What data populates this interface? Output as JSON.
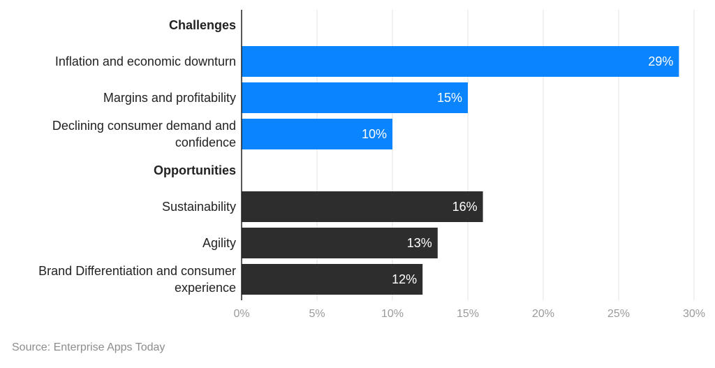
{
  "chart_data": {
    "type": "bar",
    "orientation": "horizontal",
    "unit": "%",
    "xlim": [
      0,
      30
    ],
    "xticks": [
      0,
      5,
      10,
      15,
      20,
      25,
      30
    ],
    "grid": true,
    "colors": {
      "challenges": "#0a84ff",
      "opportunities": "#2d2d2d",
      "grid": "#e3e3e3",
      "axis": "#222222",
      "tick_label": "#9a9a9a",
      "label": "#222222",
      "value_label": "#ffffff"
    },
    "rows": [
      {
        "label": "Challenges",
        "is_group_header": true
      },
      {
        "label": "Inflation and economic downturn",
        "value": 29,
        "value_label": "29%",
        "group": "challenges"
      },
      {
        "label": "Margins and profitability",
        "value": 15,
        "value_label": "15%",
        "group": "challenges"
      },
      {
        "label": "Declining consumer demand and confidence",
        "label_lines": [
          "Declining consumer demand and",
          "confidence"
        ],
        "value": 10,
        "value_label": "10%",
        "group": "challenges"
      },
      {
        "label": "Opportunities",
        "is_group_header": true
      },
      {
        "label": "Sustainability",
        "value": 16,
        "value_label": "16%",
        "group": "opportunities"
      },
      {
        "label": "Agility",
        "value": 13,
        "value_label": "13%",
        "group": "opportunities"
      },
      {
        "label": "Brand Differentiation and consumer experience",
        "label_lines": [
          "Brand Differentiation and consumer",
          "experience"
        ],
        "value": 12,
        "value_label": "12%",
        "group": "opportunities"
      }
    ]
  },
  "footer": {
    "source": "Source: Enterprise Apps Today"
  }
}
